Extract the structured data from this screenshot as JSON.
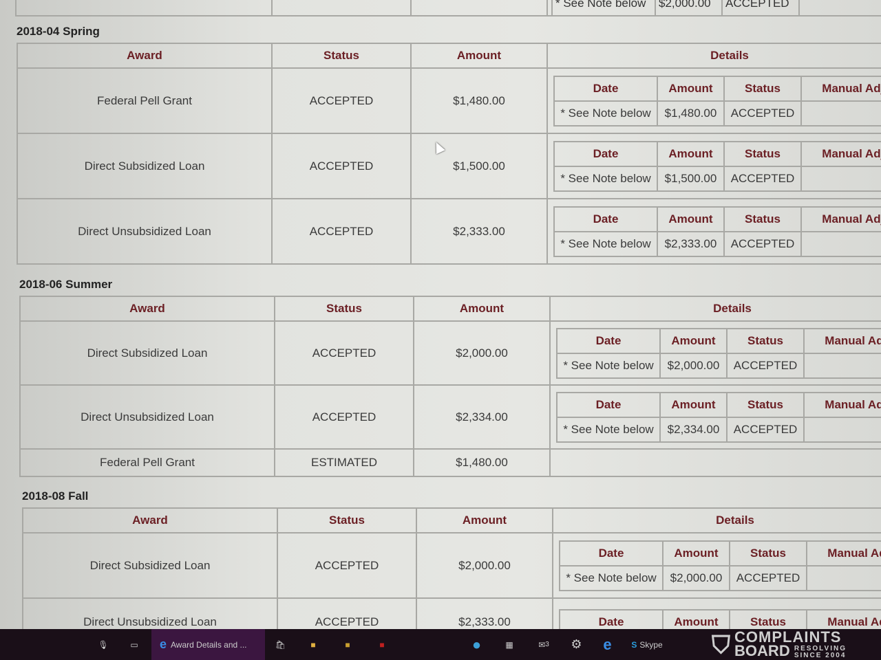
{
  "headers": {
    "award": "Award",
    "status": "Status",
    "amount": "Amount",
    "details": "Details"
  },
  "detail_headers": {
    "date": "Date",
    "amount": "Amount",
    "status": "Status",
    "manual": "Manual Adju"
  },
  "previous_partial": {
    "date": "* See Note below",
    "amount": "$2,000.00",
    "status": "ACCEPTED"
  },
  "terms": [
    {
      "title": "2018-04 Spring",
      "rows": [
        {
          "award": "Federal Pell Grant",
          "status": "ACCEPTED",
          "amount": "$1,480.00",
          "details": {
            "date": "* See Note below",
            "amount": "$1,480.00",
            "status": "ACCEPTED"
          }
        },
        {
          "award": "Direct Subsidized Loan",
          "status": "ACCEPTED",
          "amount": "$1,500.00",
          "details": {
            "date": "* See Note below",
            "amount": "$1,500.00",
            "status": "ACCEPTED"
          }
        },
        {
          "award": "Direct Unsubsidized Loan",
          "status": "ACCEPTED",
          "amount": "$2,333.00",
          "details": {
            "date": "* See Note below",
            "amount": "$2,333.00",
            "status": "ACCEPTED"
          }
        }
      ]
    },
    {
      "title": "2018-06 Summer",
      "rows": [
        {
          "award": "Direct Subsidized Loan",
          "status": "ACCEPTED",
          "amount": "$2,000.00",
          "details": {
            "date": "* See Note below",
            "amount": "$2,000.00",
            "status": "ACCEPTED"
          }
        },
        {
          "award": "Direct Unsubsidized Loan",
          "status": "ACCEPTED",
          "amount": "$2,334.00",
          "details": {
            "date": "* See Note below",
            "amount": "$2,334.00",
            "status": "ACCEPTED"
          }
        },
        {
          "award": "Federal Pell Grant",
          "status": "ESTIMATED",
          "amount": "$1,480.00"
        }
      ]
    },
    {
      "title": "2018-08 Fall",
      "rows": [
        {
          "award": "Direct Subsidized Loan",
          "status": "ACCEPTED",
          "amount": "$2,000.00",
          "details": {
            "date": "* See Note below",
            "amount": "$2,000.00",
            "status": "ACCEPTED"
          }
        },
        {
          "award": "Direct Unsubsidized Loan",
          "status": "ACCEPTED",
          "amount": "$2,333.00",
          "details": {}
        }
      ]
    }
  ],
  "taskbar": {
    "active_window": "Award Details and ...",
    "skype": "Skype",
    "mail_badge": "3"
  },
  "watermark": {
    "line1": "COMPLAINTS",
    "line2": "BOARD",
    "tag1": "RESOLVING",
    "tag2": "SINCE 2004"
  }
}
